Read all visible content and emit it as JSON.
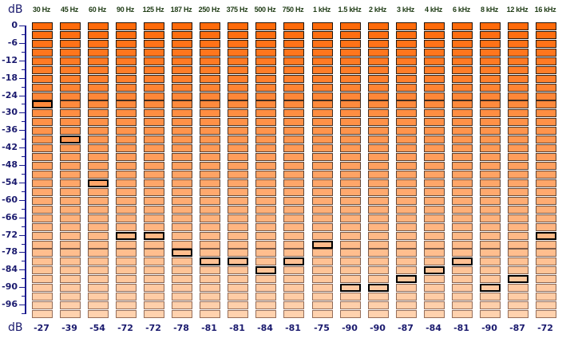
{
  "axis": {
    "unit_top": "dB",
    "unit_bottom": "dB",
    "max_db": 0,
    "min_db": -99,
    "step_db": 3,
    "label_every_db": 6
  },
  "bands": [
    {
      "label": "30 Hz",
      "peak": -27
    },
    {
      "label": "45 Hz",
      "peak": -39
    },
    {
      "label": "60 Hz",
      "peak": -54
    },
    {
      "label": "90 Hz",
      "peak": -72
    },
    {
      "label": "125 Hz",
      "peak": -72
    },
    {
      "label": "187 Hz",
      "peak": -78
    },
    {
      "label": "250 Hz",
      "peak": -81
    },
    {
      "label": "375 Hz",
      "peak": -81
    },
    {
      "label": "500 Hz",
      "peak": -84
    },
    {
      "label": "750 Hz",
      "peak": -81
    },
    {
      "label": "1 kHz",
      "peak": -75
    },
    {
      "label": "1.5 kHz",
      "peak": -90
    },
    {
      "label": "2 kHz",
      "peak": -90
    },
    {
      "label": "3 kHz",
      "peak": -87
    },
    {
      "label": "4 kHz",
      "peak": -84
    },
    {
      "label": "6 kHz",
      "peak": -81
    },
    {
      "label": "8 kHz",
      "peak": -90
    },
    {
      "label": "12 kHz",
      "peak": -87
    },
    {
      "label": "16 kHz",
      "peak": -72
    }
  ],
  "colors": {
    "top": "#ff6a0a",
    "bottom": "#ffd2ae",
    "axis": "#1a1a8e",
    "text": "#1a1a6e",
    "freq_text": "#1e3b14"
  }
}
